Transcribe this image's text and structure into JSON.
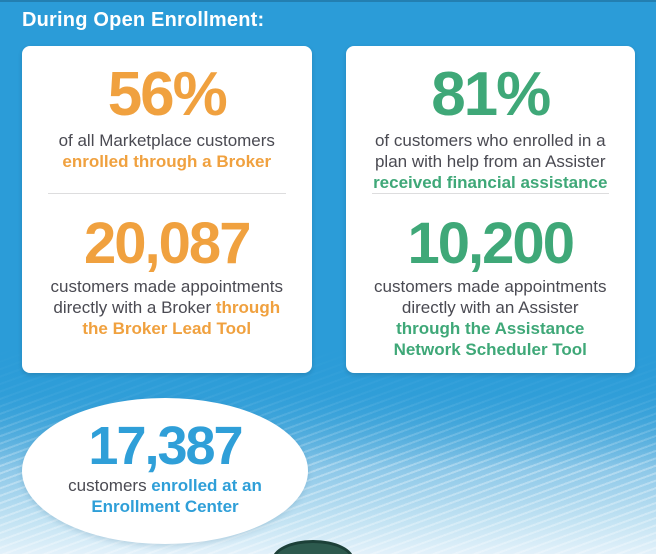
{
  "header": {
    "title": "During Open Enrollment:"
  },
  "colors": {
    "background_blue": "#2B9CD8",
    "broker_orange": "#F0A13F",
    "assister_green": "#3FA878",
    "enrollment_blue": "#2F9FD8",
    "body_text_gray": "#4A4A52",
    "card_white": "#FFFFFF"
  },
  "stats": {
    "broker_percent": {
      "value": "56%",
      "line1": "of all Marketplace customers",
      "highlight": "enrolled through a Broker"
    },
    "assister_percent": {
      "value": "81%",
      "line1": "of customers who enrolled in a",
      "line2": "plan with help from an Assister",
      "highlight": "received financial assistance"
    },
    "broker_appointments": {
      "value": "20,087",
      "line1": "customers made appointments",
      "line2_plain": "directly with a Broker ",
      "line2_highlight": "through",
      "line3_highlight": "the Broker Lead Tool"
    },
    "assister_appointments": {
      "value": "10,200",
      "line1": "customers made appointments",
      "line2": "directly with an Assister",
      "highlight_line1": "through the Assistance",
      "highlight_line2": "Network Scheduler Tool"
    },
    "enrollment_center": {
      "value": "17,387",
      "line1_plain": "customers ",
      "line1_highlight": "enrolled at an",
      "line2_highlight": "Enrollment Center"
    }
  }
}
